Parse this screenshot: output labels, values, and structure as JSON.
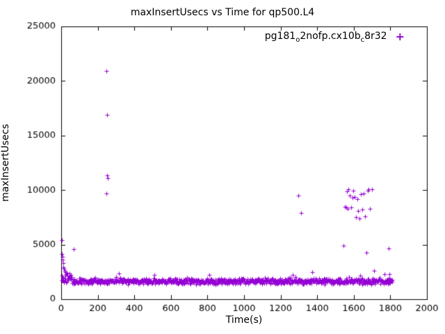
{
  "figure": {
    "background": "#ffffff",
    "axis_color": "#000000"
  },
  "chart_data": {
    "type": "scatter",
    "title": "maxInsertUsecs vs Time for qp500.L4",
    "xlabel": "Time(s)",
    "ylabel": "maxInsertUsecs",
    "xlim": [
      0,
      2000
    ],
    "ylim": [
      0,
      25000
    ],
    "x_ticks": [
      0,
      200,
      400,
      600,
      800,
      1000,
      1200,
      1400,
      1600,
      1800,
      2000
    ],
    "y_ticks": [
      0,
      5000,
      10000,
      15000,
      20000,
      25000
    ],
    "grid": false,
    "legend": {
      "position": "top-right-inside",
      "series_label": "pg181_o2nofp.cx10b_c8r32",
      "label_parts": [
        {
          "text": "pg181"
        },
        {
          "sub": "o"
        },
        {
          "text": "2nofp.cx10b"
        },
        {
          "sub": "c"
        },
        {
          "text": "8r32"
        }
      ],
      "marker_glyph": "+"
    },
    "marker": {
      "shape": "plus",
      "color": "#9400d3",
      "size": 7
    },
    "series": [
      {
        "name": "pg181_o2nofp.cx10b_c8r32",
        "baseline_band": {
          "description": "dense band of samples roughly 1300-2100 usecs across the whole run",
          "x_start": 2,
          "x_end": 1810,
          "x_step": 2,
          "y_center": 1650,
          "y_jitter": 320,
          "spike_probability": 0.015,
          "spike_extra": 700,
          "early_elevation": {
            "x_below": 60,
            "extra": 600
          }
        },
        "outliers": [
          [
            3,
            5400
          ],
          [
            4,
            4150
          ],
          [
            6,
            3900
          ],
          [
            8,
            3650
          ],
          [
            10,
            3300
          ],
          [
            12,
            2950
          ],
          [
            14,
            2800
          ],
          [
            18,
            2600
          ],
          [
            24,
            2500
          ],
          [
            32,
            2450
          ],
          [
            44,
            2350
          ],
          [
            70,
            4600
          ],
          [
            246,
            9700
          ],
          [
            249,
            20900
          ],
          [
            251,
            16900
          ],
          [
            252,
            11350
          ],
          [
            256,
            11100
          ],
          [
            1298,
            9500
          ],
          [
            1312,
            7900
          ],
          [
            1545,
            4900
          ],
          [
            1552,
            8500
          ],
          [
            1558,
            8400
          ],
          [
            1562,
            9900
          ],
          [
            1568,
            8300
          ],
          [
            1572,
            10050
          ],
          [
            1578,
            9500
          ],
          [
            1585,
            8450
          ],
          [
            1592,
            9300
          ],
          [
            1598,
            9950
          ],
          [
            1605,
            9400
          ],
          [
            1612,
            7500
          ],
          [
            1618,
            9200
          ],
          [
            1625,
            8100
          ],
          [
            1632,
            7400
          ],
          [
            1640,
            9600
          ],
          [
            1648,
            8200
          ],
          [
            1655,
            9700
          ],
          [
            1662,
            7600
          ],
          [
            1668,
            4300
          ],
          [
            1675,
            9950
          ],
          [
            1682,
            10100
          ],
          [
            1690,
            8300
          ],
          [
            1698,
            10050
          ],
          [
            1712,
            2600
          ],
          [
            1790,
            4650
          ],
          [
            1795,
            2300
          ]
        ]
      }
    ]
  }
}
